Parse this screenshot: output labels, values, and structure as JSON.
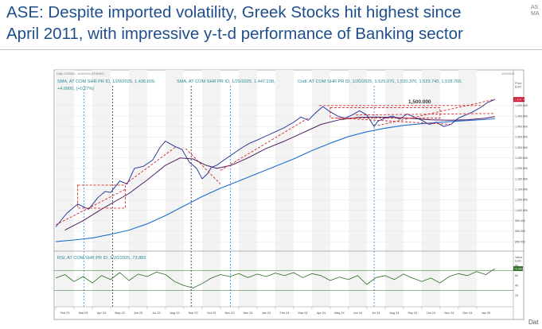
{
  "slide": {
    "title": "ASE: Despite imported volatility, Greek Stocks hit highest since April 2011, with impressive y-t-d performance of Banking sector",
    "corner_logo_text": "AS\nMA",
    "footer_partial": "Dat"
  },
  "colors": {
    "title": "#1f4e8c",
    "price": "#1c2f93",
    "sma_short": "#4f1c5e",
    "sma_long": "#1e6fd0",
    "trend_red": "#d3282b",
    "rsi": "#2b6e22",
    "badge": "#c8102e"
  },
  "chart_data": [
    {
      "type": "line",
      "panel": "price",
      "header_small": "Daily 1/3/2023 - 1/20/2025 (ATHENS)",
      "header_right": "1/20/2025",
      "legend": {
        "line1": "SMA, AT COM SHR PR ID, 1/20/2025, 1,436.609,",
        "line2": "SMA, AT COM SHR PR ID, 1/20/2025, 1,447.238,",
        "line3": "Cndl, AT COM SHR PR ID, 1/20/2025, 1,525.070, 1,530.370, 1,523.740, 1,528.760,",
        "line4": "+4.0900, (+0.27%)"
      },
      "currency_label": "Price\nEUR",
      "annotation": "1,500.000",
      "last_value_badge": "1,528.76",
      "y_ticks": [
        "1,500.000",
        "1,450.000",
        "1,400.000",
        "1,350.000",
        "1,300.000",
        "1,250.000",
        "1,200.000",
        "1,150.000",
        "1,100.000",
        "1,050.000",
        "1,000.000",
        "950.000",
        "900.000",
        "850.000"
      ],
      "ylim": [
        820,
        1560
      ],
      "x_months": [
        "Feb 23",
        "Mar 23",
        "Apr 23",
        "May 23",
        "Jun 23",
        "Jul 23",
        "Aug 23",
        "Sep 23",
        "Oct 23",
        "Nov 23",
        "Dec 23",
        "Jan 24",
        "Feb 24",
        "Mar 24",
        "Apr 24",
        "May 24",
        "Jun 24",
        "Jul 24",
        "Aug 24",
        "Sep 24",
        "Oct 24",
        "Nov 24",
        "Dec 24",
        "Jan 25"
      ],
      "xlim": [
        0,
        24.7
      ],
      "series": [
        {
          "name": "Cndl AT COM SHR PR ID",
          "points": [
            [
              0,
              920
            ],
            [
              0.6,
              985
            ],
            [
              1.2,
              1030
            ],
            [
              1.8,
              1005
            ],
            [
              2.3,
              1060
            ],
            [
              2.7,
              1090
            ],
            [
              3.0,
              1085
            ],
            [
              3.5,
              1140
            ],
            [
              3.9,
              1125
            ],
            [
              4.3,
              1200
            ],
            [
              4.8,
              1210
            ],
            [
              5.3,
              1240
            ],
            [
              5.7,
              1300
            ],
            [
              6.0,
              1330
            ],
            [
              6.5,
              1305
            ],
            [
              6.9,
              1290
            ],
            [
              7.3,
              1230
            ],
            [
              7.7,
              1200
            ],
            [
              8.0,
              1150
            ],
            [
              8.3,
              1175
            ],
            [
              8.5,
              1205
            ],
            [
              8.8,
              1215
            ],
            [
              9.2,
              1240
            ],
            [
              9.7,
              1270
            ],
            [
              10.2,
              1300
            ],
            [
              10.6,
              1320
            ],
            [
              11.0,
              1335
            ],
            [
              11.5,
              1355
            ],
            [
              12.0,
              1375
            ],
            [
              12.5,
              1395
            ],
            [
              13.0,
              1420
            ],
            [
              13.4,
              1445
            ],
            [
              13.8,
              1430
            ],
            [
              14.2,
              1465
            ],
            [
              14.6,
              1495
            ],
            [
              15.0,
              1470
            ],
            [
              15.4,
              1450
            ],
            [
              15.8,
              1440
            ],
            [
              16.2,
              1455
            ],
            [
              16.6,
              1475
            ],
            [
              17.0,
              1455
            ],
            [
              17.4,
              1400
            ],
            [
              17.6,
              1425
            ],
            [
              18.0,
              1440
            ],
            [
              18.4,
              1450
            ],
            [
              18.8,
              1435
            ],
            [
              19.2,
              1460
            ],
            [
              19.6,
              1445
            ],
            [
              20.0,
              1430
            ],
            [
              20.4,
              1410
            ],
            [
              20.8,
              1420
            ],
            [
              21.2,
              1400
            ],
            [
              21.6,
              1410
            ],
            [
              22.0,
              1440
            ],
            [
              22.4,
              1455
            ],
            [
              22.8,
              1470
            ],
            [
              23.2,
              1490
            ],
            [
              23.6,
              1515
            ],
            [
              24.0,
              1528.76
            ]
          ]
        },
        {
          "name": "SMA (short)",
          "points": [
            [
              0.5,
              905
            ],
            [
              1.5,
              950
            ],
            [
              2.5,
              1005
            ],
            [
              3.2,
              1040
            ],
            [
              4.0,
              1080
            ],
            [
              5.0,
              1145
            ],
            [
              6.0,
              1215
            ],
            [
              6.8,
              1250
            ],
            [
              7.5,
              1245
            ],
            [
              8.2,
              1215
            ],
            [
              8.8,
              1200
            ],
            [
              9.6,
              1215
            ],
            [
              10.5,
              1250
            ],
            [
              11.5,
              1295
            ],
            [
              12.5,
              1330
            ],
            [
              13.5,
              1370
            ],
            [
              14.5,
              1410
            ],
            [
              15.5,
              1432
            ],
            [
              16.5,
              1443
            ],
            [
              17.5,
              1445
            ],
            [
              18.5,
              1443
            ],
            [
              19.5,
              1438
            ],
            [
              20.5,
              1432
            ],
            [
              21.5,
              1430
            ],
            [
              22.5,
              1432
            ],
            [
              23.5,
              1440
            ],
            [
              24.0,
              1447.238
            ]
          ]
        },
        {
          "name": "SMA (long)",
          "points": [
            [
              0,
              850
            ],
            [
              1,
              858
            ],
            [
              2,
              868
            ],
            [
              3,
              885
            ],
            [
              4,
              905
            ],
            [
              5,
              935
            ],
            [
              6,
              975
            ],
            [
              7,
              1020
            ],
            [
              8,
              1065
            ],
            [
              9,
              1105
            ],
            [
              10,
              1140
            ],
            [
              11,
              1175
            ],
            [
              12,
              1210
            ],
            [
              13,
              1245
            ],
            [
              14,
              1285
            ],
            [
              15,
              1320
            ],
            [
              16,
              1352
            ],
            [
              17,
              1375
            ],
            [
              18,
              1392
            ],
            [
              19,
              1405
            ],
            [
              20,
              1413
            ],
            [
              21,
              1420
            ],
            [
              22,
              1426
            ],
            [
              23,
              1431
            ],
            [
              24,
              1436.609
            ]
          ]
        }
      ],
      "trendlines_dashed": [
        [
          [
            0,
            930
          ],
          [
            3.8,
            1100
          ]
        ],
        [
          [
            3.8,
            1125
          ],
          [
            6.6,
            1305
          ]
        ],
        [
          [
            7.1,
            1295
          ],
          [
            9.0,
            1125
          ]
        ],
        [
          [
            9.0,
            1190
          ],
          [
            13.8,
            1440
          ]
        ],
        [
          [
            14.4,
            1500
          ],
          [
            23.4,
            1500
          ]
        ],
        [
          [
            15.4,
            1440
          ],
          [
            21.6,
            1410
          ]
        ],
        [
          [
            16.4,
            1455
          ],
          [
            24.0,
            1462
          ]
        ],
        [
          [
            17.6,
            1405
          ],
          [
            24.0,
            1530
          ]
        ]
      ],
      "rectangles_dashed": [
        {
          "x": [
            1.2,
            3.8
          ],
          "y": [
            1010,
            1120
          ]
        },
        {
          "x": [
            15.0,
            21.0
          ],
          "y": [
            1440,
            1490
          ]
        }
      ],
      "vertical_markers": [
        {
          "x": 3.1,
          "style": "black-dash"
        },
        {
          "x": 7.4,
          "style": "black-dash"
        },
        {
          "x": 1.55,
          "style": "blue-dash"
        },
        {
          "x": 9.55,
          "style": "blue-dash"
        },
        {
          "x": 17.4,
          "style": "blue-dash"
        }
      ]
    },
    {
      "type": "line",
      "panel": "rsi",
      "legend": "RSI, AT COM SHR PR ID, 1/20/2025, 73.883",
      "value_label": "Value\nEUR",
      "last_value_badge": "73.883",
      "y_ticks": [
        "80",
        "60",
        "40",
        "20"
      ],
      "ylim": [
        10,
        90
      ],
      "bands": [
        70,
        30
      ],
      "xlim": [
        0,
        24.7
      ],
      "series": [
        {
          "name": "RSI",
          "points": [
            [
              0,
              55
            ],
            [
              0.5,
              62
            ],
            [
              1.0,
              48
            ],
            [
              1.5,
              58
            ],
            [
              2.0,
              45
            ],
            [
              2.5,
              60
            ],
            [
              3.0,
              52
            ],
            [
              3.5,
              66
            ],
            [
              4.0,
              50
            ],
            [
              4.5,
              63
            ],
            [
              5.0,
              58
            ],
            [
              5.5,
              67
            ],
            [
              6.0,
              62
            ],
            [
              6.5,
              48
            ],
            [
              7.0,
              40
            ],
            [
              7.5,
              35
            ],
            [
              8.0,
              44
            ],
            [
              8.5,
              55
            ],
            [
              9.0,
              62
            ],
            [
              9.5,
              58
            ],
            [
              10.0,
              64
            ],
            [
              10.5,
              56
            ],
            [
              11.0,
              63
            ],
            [
              11.5,
              58
            ],
            [
              12.0,
              65
            ],
            [
              12.5,
              60
            ],
            [
              13.0,
              66
            ],
            [
              13.5,
              56
            ],
            [
              14.0,
              64
            ],
            [
              14.5,
              60
            ],
            [
              15.0,
              50
            ],
            [
              15.5,
              57
            ],
            [
              16.0,
              52
            ],
            [
              16.5,
              60
            ],
            [
              17.0,
              42
            ],
            [
              17.5,
              56
            ],
            [
              18.0,
              60
            ],
            [
              18.5,
              52
            ],
            [
              19.0,
              63
            ],
            [
              19.5,
              55
            ],
            [
              20.0,
              48
            ],
            [
              20.5,
              55
            ],
            [
              21.0,
              45
            ],
            [
              21.5,
              58
            ],
            [
              22.0,
              64
            ],
            [
              22.5,
              60
            ],
            [
              23.0,
              68
            ],
            [
              23.5,
              62
            ],
            [
              24.0,
              73.883
            ]
          ]
        }
      ]
    }
  ]
}
